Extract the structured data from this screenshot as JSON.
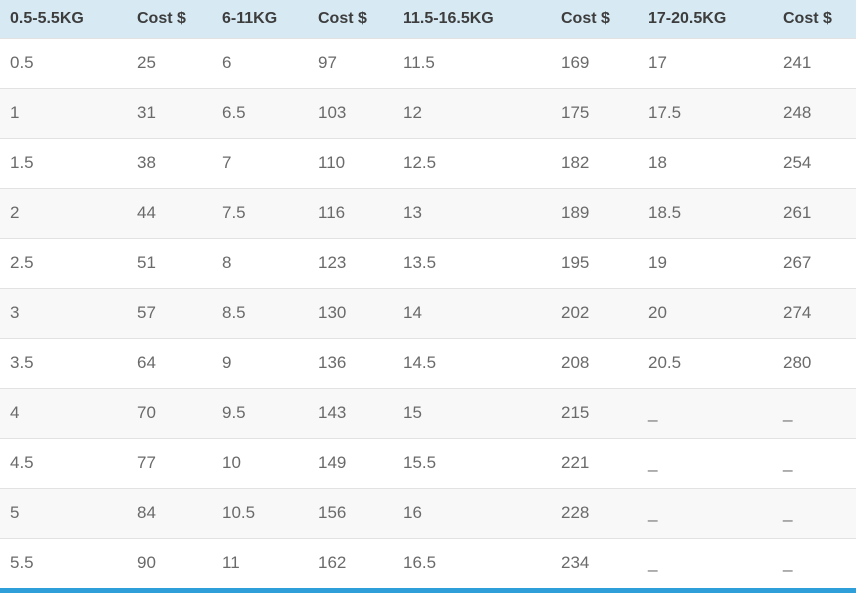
{
  "table": {
    "headers": [
      "0.5-5.5KG",
      "Cost $",
      "6-11KG",
      "Cost $",
      "11.5-16.5KG",
      "Cost $",
      "17-20.5KG",
      "Cost $"
    ],
    "rows": [
      [
        "0.5",
        "25",
        "6",
        "97",
        "11.5",
        "169",
        "17",
        "241"
      ],
      [
        "1",
        "31",
        "6.5",
        "103",
        "12",
        "175",
        "17.5",
        "248"
      ],
      [
        "1.5",
        "38",
        "7",
        "110",
        "12.5",
        "182",
        "18",
        "254"
      ],
      [
        "2",
        "44",
        "7.5",
        "116",
        "13",
        "189",
        "18.5",
        "261"
      ],
      [
        "2.5",
        "51",
        "8",
        "123",
        "13.5",
        "195",
        "19",
        "267"
      ],
      [
        "3",
        "57",
        "8.5",
        "130",
        "14",
        "202",
        "20",
        "274"
      ],
      [
        "3.5",
        "64",
        "9",
        "136",
        "14.5",
        "208",
        "20.5",
        "280"
      ],
      [
        "4",
        "70",
        "9.5",
        "143",
        "15",
        "215",
        "_",
        "_"
      ],
      [
        "4.5",
        "77",
        "10",
        "149",
        "15.5",
        "221",
        "_",
        "_"
      ],
      [
        "5",
        "84",
        "10.5",
        "156",
        "16",
        "228",
        "_",
        "_"
      ],
      [
        "5.5",
        "90",
        "11",
        "162",
        "16.5",
        "234",
        "_",
        "_"
      ]
    ]
  },
  "colors": {
    "header_bg": "#d7eaf4",
    "header_text": "#3d3d3d",
    "cell_text": "#6a6a6a",
    "row_alt_bg": "#f8f8f8",
    "row_border": "#e2e2e2",
    "bottom_bar": "#2f9fd9"
  }
}
